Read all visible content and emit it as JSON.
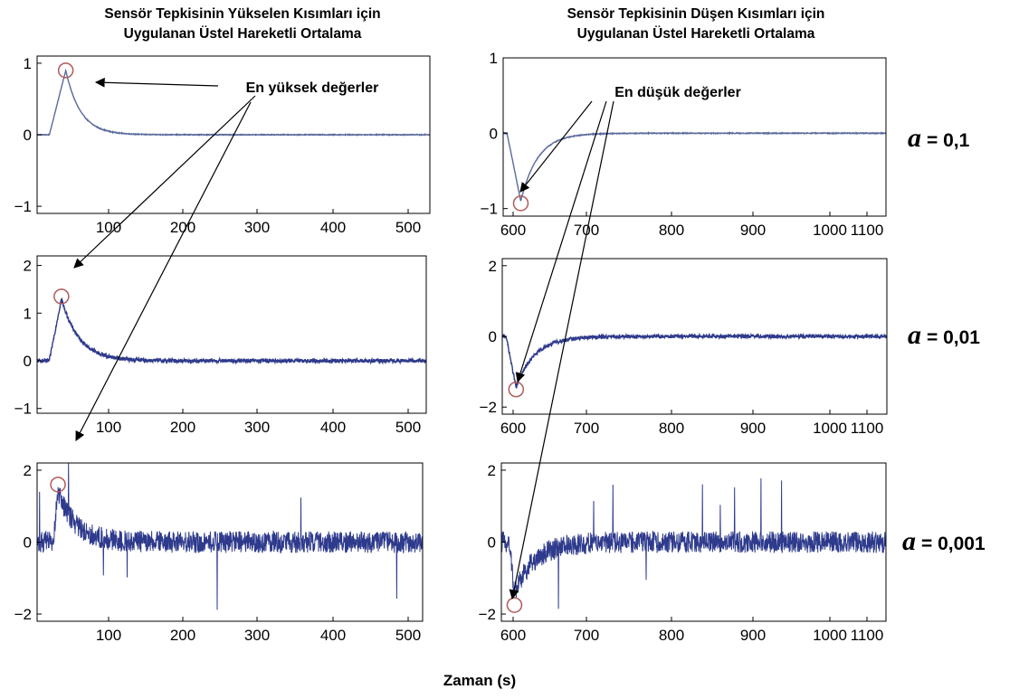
{
  "figure": {
    "xlabel": "Zaman (s)",
    "column_titles": [
      [
        "Sensör Tepkisinin Yükselen Kısımları için",
        "Uygulanan Üstel Hareketli Ortalama"
      ],
      [
        "Sensör Tepkisinin Düşen Kısımları için",
        "Uygulanan Üstel Hareketli Ortalama"
      ]
    ],
    "annotations": {
      "peaks": "En yüksek değerler",
      "troughs": "En düşük değerler"
    },
    "alpha_symbol": "a",
    "alpha_rows": [
      "= 0,1",
      "= 0,01",
      "= 0,001"
    ],
    "colors": {
      "trace": "#2e3a8c",
      "trace_light": "#5a6a9c",
      "marker": "#b05a5a",
      "axis": "#000000"
    }
  },
  "chart_data": [
    {
      "type": "line",
      "row": 0,
      "col": 0,
      "alpha": "0,1",
      "xlim": [
        20,
        500
      ],
      "ylim": [
        -1.1,
        1.1
      ],
      "xticks": [
        "100",
        "200",
        "300",
        "400",
        "500"
      ],
      "yticks": [
        "1",
        "0",
        "-1"
      ],
      "response": {
        "onset": 35,
        "peak_x": 55,
        "peak_y": 0.9,
        "decay_tau": 18,
        "noise": 0.005
      },
      "marker": {
        "x": 55,
        "y": 0.9
      }
    },
    {
      "type": "line",
      "row": 0,
      "col": 1,
      "alpha": "0,1",
      "xlim": [
        600,
        1100
      ],
      "ylim": [
        -1.1,
        1.0
      ],
      "xticks": [
        "600",
        "700",
        "800",
        "900",
        "1000",
        "1100"
      ],
      "yticks": [
        "1",
        "0",
        "-1"
      ],
      "response": {
        "onset": 605,
        "peak_x": 623,
        "peak_y": -0.9,
        "decay_tau": 22,
        "noise": 0.005
      },
      "marker": {
        "x": 623,
        "y": -0.93
      }
    },
    {
      "type": "line",
      "row": 1,
      "col": 0,
      "alpha": "0,01",
      "xlim": [
        20,
        500
      ],
      "ylim": [
        -1.1,
        2.2
      ],
      "xticks": [
        "100",
        "200",
        "300",
        "400",
        "500"
      ],
      "yticks": [
        "2",
        "1",
        "0",
        "-1"
      ],
      "response": {
        "onset": 35,
        "peak_x": 50,
        "peak_y": 1.3,
        "decay_tau": 22,
        "noise": 0.04
      },
      "marker": {
        "x": 50,
        "y": 1.35
      }
    },
    {
      "type": "line",
      "row": 1,
      "col": 1,
      "alpha": "0,01",
      "xlim": [
        600,
        1100
      ],
      "ylim": [
        -2.2,
        2.2
      ],
      "xticks": [
        "600",
        "700",
        "800",
        "900",
        "1000",
        "1100"
      ],
      "yticks": [
        "2",
        "0",
        "-2"
      ],
      "response": {
        "onset": 605,
        "peak_x": 618,
        "peak_y": -1.45,
        "decay_tau": 24,
        "noise": 0.05
      },
      "marker": {
        "x": 618,
        "y": -1.5
      }
    },
    {
      "type": "line",
      "row": 2,
      "col": 0,
      "alpha": "0,001",
      "xlim": [
        20,
        500
      ],
      "ylim": [
        -2.2,
        2.2
      ],
      "xticks": [
        "100",
        "200",
        "300",
        "400",
        "500"
      ],
      "yticks": [
        "2",
        "0",
        "-2"
      ],
      "response": {
        "onset": 40,
        "peak_x": 46,
        "peak_y": 1.4,
        "decay_tau": 22,
        "noise": 0.3
      },
      "marker": {
        "x": 46,
        "y": 1.6
      }
    },
    {
      "type": "line",
      "row": 2,
      "col": 1,
      "alpha": "0,001",
      "xlim": [
        600,
        1100
      ],
      "ylim": [
        -2.2,
        2.2
      ],
      "xticks": [
        "600",
        "700",
        "800",
        "900",
        "1000",
        "1100"
      ],
      "yticks": [
        "2",
        "0",
        "-2"
      ],
      "response": {
        "onset": 610,
        "peak_x": 617,
        "peak_y": -1.4,
        "decay_tau": 26,
        "noise": 0.3
      },
      "marker": {
        "x": 617,
        "y": -1.75
      }
    }
  ]
}
